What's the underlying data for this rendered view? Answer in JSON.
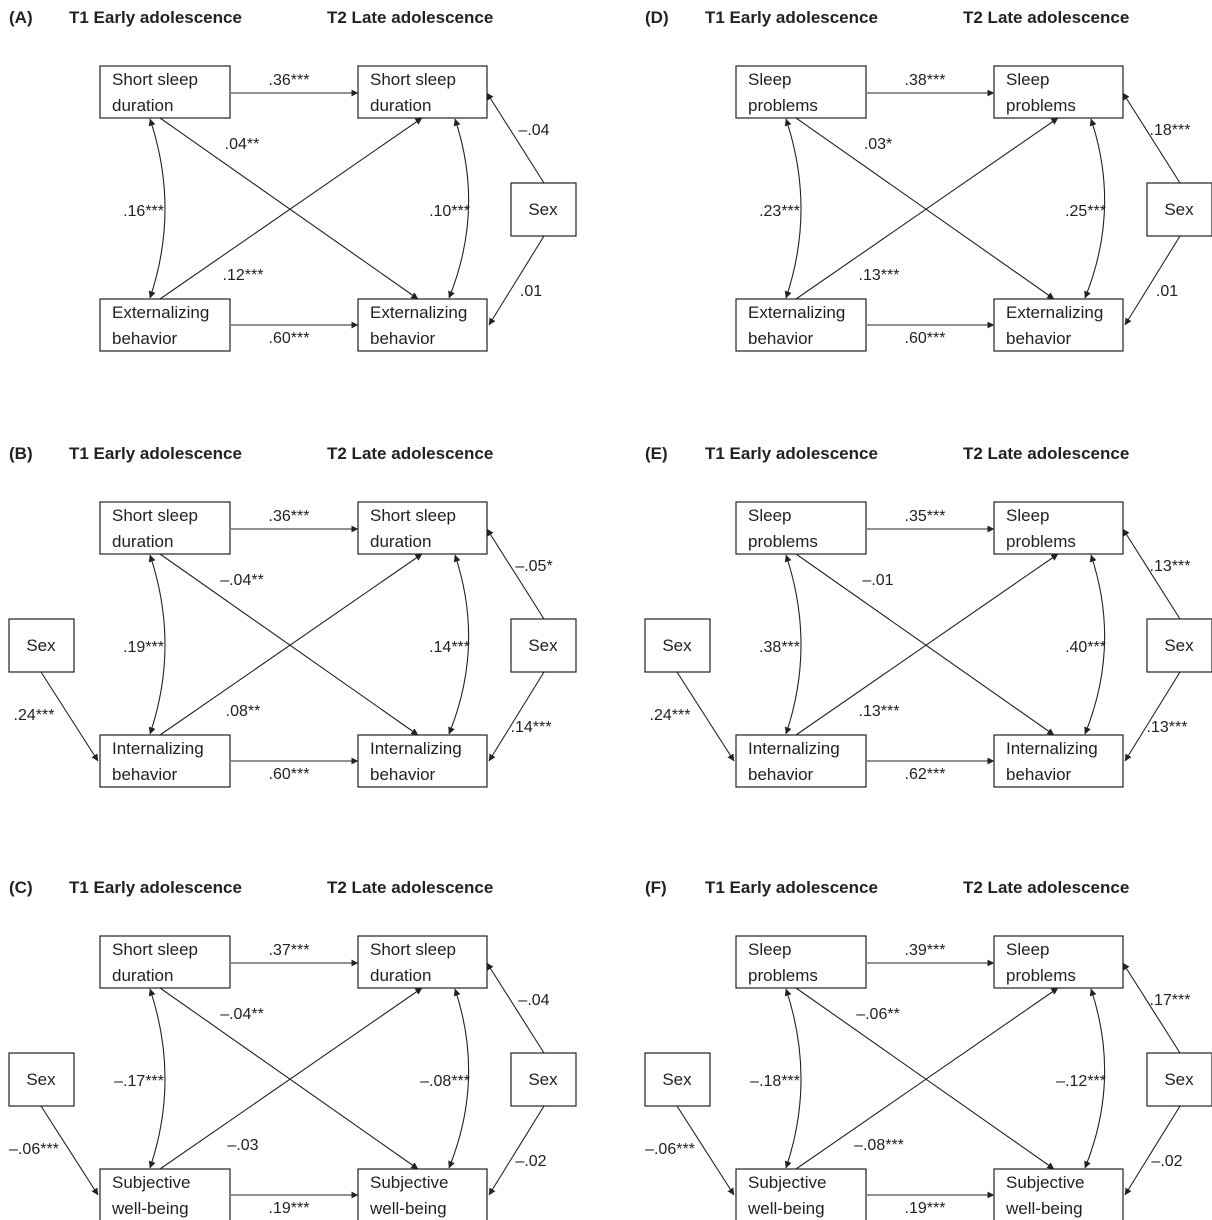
{
  "colors": {
    "line": "#222222",
    "background": "#ffffff"
  },
  "panels": [
    {
      "letter": "(A)",
      "head_t1": "T1 Early adolescence",
      "head_t2": "T2 Late adolescence",
      "sleep": [
        "Short sleep",
        "duration"
      ],
      "outcome": [
        "Externalizing",
        "behavior"
      ],
      "sleep_t2": [
        "Short sleep",
        "duration"
      ],
      "outcome_t2": [
        "Externalizing",
        "behavior"
      ],
      "sex_left": null,
      "sex_right": "Sex",
      "sleep_stab": ".36***",
      "out_stab": ".60***",
      "cross_sleep_to_out": ".04**",
      "cross_out_to_sleep": ".12***",
      "corr_t1": ".16***",
      "corr_t2": ".10***",
      "sex_right_sleep": "–.04",
      "sex_right_out": ".01",
      "sex_left_out": null
    },
    {
      "letter": "(B)",
      "head_t1": "T1 Early adolescence",
      "head_t2": "T2 Late adolescence",
      "sleep": [
        "Short sleep",
        "duration"
      ],
      "outcome": [
        "Internalizing",
        "behavior"
      ],
      "sleep_t2": [
        "Short sleep",
        "duration"
      ],
      "outcome_t2": [
        "Internalizing",
        "behavior"
      ],
      "sex_left": "Sex",
      "sex_right": "Sex",
      "sleep_stab": ".36***",
      "out_stab": ".60***",
      "cross_sleep_to_out": "–.04**",
      "cross_out_to_sleep": ".08**",
      "corr_t1": ".19***",
      "corr_t2": ".14***",
      "sex_right_sleep": "–.05*",
      "sex_right_out": ".14***",
      "sex_left_out": ".24***"
    },
    {
      "letter": "(C)",
      "head_t1": "T1 Early adolescence",
      "head_t2": "T2 Late adolescence",
      "sleep": [
        "Short sleep",
        "duration"
      ],
      "outcome": [
        "Subjective",
        "well-being"
      ],
      "sleep_t2": [
        "Short sleep",
        "duration"
      ],
      "outcome_t2": [
        "Subjective",
        "well-being"
      ],
      "sex_left": "Sex",
      "sex_right": "Sex",
      "sleep_stab": ".37***",
      "out_stab": ".19***",
      "cross_sleep_to_out": "–.04**",
      "cross_out_to_sleep": "–.03",
      "corr_t1": "–.17***",
      "corr_t2": "–.08***",
      "sex_right_sleep": "–.04",
      "sex_right_out": "–.02",
      "sex_left_out": "–.06***"
    },
    {
      "letter": "(D)",
      "head_t1": "T1 Early adolescence",
      "head_t2": "T2 Late adolescence",
      "sleep": [
        "Sleep",
        "problems"
      ],
      "outcome": [
        "Externalizing",
        "behavior"
      ],
      "sleep_t2": [
        "Sleep",
        "problems"
      ],
      "outcome_t2": [
        "Externalizing",
        "behavior"
      ],
      "sex_left": null,
      "sex_right": "Sex",
      "sleep_stab": ".38***",
      "out_stab": ".60***",
      "cross_sleep_to_out": ".03*",
      "cross_out_to_sleep": ".13***",
      "corr_t1": ".23***",
      "corr_t2": ".25***",
      "sex_right_sleep": ".18***",
      "sex_right_out": ".01",
      "sex_left_out": null
    },
    {
      "letter": "(E)",
      "head_t1": "T1 Early adolescence",
      "head_t2": "T2 Late adolescence",
      "sleep": [
        "Sleep",
        "problems"
      ],
      "outcome": [
        "Internalizing",
        "behavior"
      ],
      "sleep_t2": [
        "Sleep",
        "problems"
      ],
      "outcome_t2": [
        "Internalizing",
        "behavior"
      ],
      "sex_left": "Sex",
      "sex_right": "Sex",
      "sleep_stab": ".35***",
      "out_stab": ".62***",
      "cross_sleep_to_out": "–.01",
      "cross_out_to_sleep": ".13***",
      "corr_t1": ".38***",
      "corr_t2": ".40***",
      "sex_right_sleep": ".13***",
      "sex_right_out": ".13***",
      "sex_left_out": ".24***"
    },
    {
      "letter": "(F)",
      "head_t1": "T1 Early adolescence",
      "head_t2": "T2 Late adolescence",
      "sleep": [
        "Sleep",
        "problems"
      ],
      "outcome": [
        "Subjective",
        "well-being"
      ],
      "sleep_t2": [
        "Sleep",
        "problems"
      ],
      "outcome_t2": [
        "Subjective",
        "well-being"
      ],
      "sex_left": "Sex",
      "sex_right": "Sex",
      "sleep_stab": ".39***",
      "out_stab": ".19***",
      "cross_sleep_to_out": "–.06**",
      "cross_out_to_sleep": "–.08***",
      "corr_t1": "–.18***",
      "corr_t2": "–.12***",
      "sex_right_sleep": ".17***",
      "sex_right_out": "–.02",
      "sex_left_out": "–.06***"
    }
  ]
}
